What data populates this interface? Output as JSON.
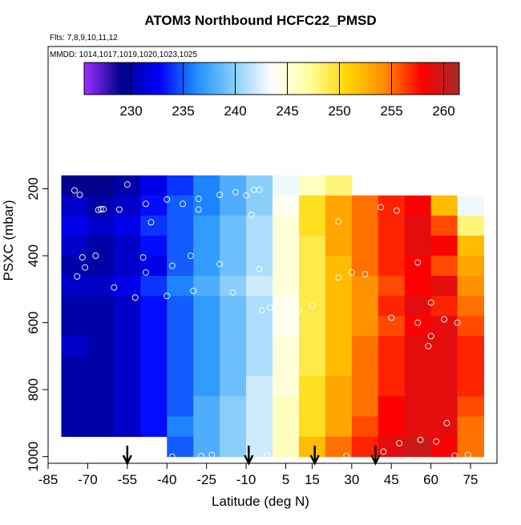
{
  "chart_data": {
    "type": "heatmap",
    "title": "ATOM3 Northbound HCFC22_PMSD",
    "subtitle": "Flts: 7,8,9,10,11,12",
    "annotation": "MMDD: 1014,1017,1019,1020,1023,1025",
    "x_label": "Latitude (deg N)",
    "y_label": "PSXC (mbar)",
    "xlim": [
      -85,
      85
    ],
    "ylim": [
      1020,
      -225
    ],
    "xticks": [
      -85,
      -70,
      -55,
      -40,
      -25,
      -10,
      5,
      15,
      30,
      45,
      60,
      75
    ],
    "yticks": [
      200,
      400,
      600,
      800,
      1000
    ],
    "xbins": [
      -80,
      -70,
      -60,
      -50,
      -40,
      -30,
      -20,
      -10,
      0,
      10,
      20,
      30,
      40,
      50,
      60,
      70,
      80
    ],
    "ybins": [
      160,
      220,
      280,
      340,
      400,
      460,
      520,
      580,
      640,
      700,
      760,
      820,
      880,
      940,
      1000
    ],
    "values": [
      [
        229,
        229,
        230,
        232,
        234,
        236,
        238,
        240,
        243,
        246,
        248,
        null,
        null,
        null,
        null,
        null
      ],
      [
        231,
        230,
        231,
        233,
        235,
        236,
        238,
        240,
        244,
        250,
        253,
        255,
        257,
        258,
        252,
        243
      ],
      [
        232,
        231,
        232,
        234,
        235,
        237,
        239,
        241,
        245,
        250,
        253,
        255,
        257,
        259,
        256,
        248
      ],
      [
        231,
        230,
        231,
        233,
        235,
        237,
        239,
        241,
        245,
        249,
        253,
        255,
        257,
        259,
        258,
        252
      ],
      [
        230,
        230,
        231,
        232,
        235,
        237,
        239,
        241,
        245,
        249,
        252,
        255,
        257,
        258,
        256,
        253
      ],
      [
        231,
        231,
        232,
        234,
        236,
        238,
        240,
        242,
        245,
        249,
        252,
        254,
        256,
        258,
        259,
        254
      ],
      [
        230,
        230,
        231,
        233,
        235,
        237,
        239,
        241,
        244,
        249,
        252,
        254,
        257,
        259,
        257,
        255
      ],
      [
        230,
        230,
        231,
        233,
        235,
        237,
        239,
        241,
        244,
        249,
        252,
        254,
        256,
        258,
        259,
        256
      ],
      [
        231,
        230,
        231,
        233,
        235,
        237,
        239,
        241,
        245,
        249,
        252,
        255,
        257,
        259,
        259,
        257
      ],
      [
        230,
        230,
        231,
        233,
        235,
        237,
        239,
        241,
        245,
        249,
        252,
        255,
        257,
        259,
        259,
        257
      ],
      [
        230,
        230,
        231,
        233,
        235,
        237,
        239,
        242,
        245,
        250,
        253,
        255,
        257,
        259,
        259,
        257
      ],
      [
        230,
        230,
        231,
        233,
        235,
        238,
        240,
        242,
        246,
        250,
        253,
        255,
        258,
        259,
        259,
        256
      ],
      [
        230,
        230,
        231,
        233,
        236,
        238,
        240,
        242,
        246,
        250,
        253,
        256,
        258,
        259,
        259,
        255
      ],
      [
        null,
        null,
        null,
        null,
        235,
        238,
        240,
        242,
        246,
        252,
        255,
        257,
        259,
        260,
        258,
        255
      ]
    ],
    "colorbar": {
      "lim": [
        225.5,
        261.5
      ],
      "ticks": [
        230,
        235,
        240,
        245,
        250,
        255,
        260
      ],
      "colors": [
        "#9b30ff",
        "#00008b",
        "#0000ff",
        "#1e90ff",
        "#87cefa",
        "#ffffff",
        "#ffffa0",
        "#ffd700",
        "#ff8c00",
        "#ff0000",
        "#a52a2a"
      ]
    },
    "points": {
      "x": [
        -75,
        -73,
        -55,
        -48,
        -40,
        -34,
        -28,
        -20,
        -14,
        -10,
        -7,
        -5,
        -66,
        -65,
        -64,
        -58,
        -28,
        -8,
        1,
        25,
        41,
        47,
        -46,
        -72,
        -67,
        -49,
        -38,
        -31,
        -20,
        -5,
        -71,
        -74,
        -60,
        -15,
        -48,
        -40,
        -30,
        -52,
        -4,
        -1,
        10,
        25,
        30,
        15,
        35,
        55,
        60,
        65,
        55,
        70,
        60,
        -78,
        -60,
        -38,
        -27,
        -23,
        -9,
        -2,
        28,
        42,
        48,
        56,
        62,
        69,
        74,
        66,
        59,
        45
      ],
      "y": [
        205,
        218,
        187,
        245,
        232,
        245,
        230,
        218,
        210,
        220,
        203,
        203,
        263,
        261,
        261,
        262,
        262,
        278,
        265,
        298,
        255,
        265,
        300,
        405,
        400,
        405,
        430,
        400,
        425,
        440,
        435,
        462,
        495,
        510,
        450,
        520,
        505,
        525,
        563,
        555,
        562,
        465,
        450,
        550,
        455,
        420,
        540,
        590,
        600,
        600,
        640,
        950,
        950,
        1000,
        998,
        995,
        998,
        996,
        998,
        985,
        960,
        950,
        955,
        997,
        995,
        900,
        670,
        585
      ]
    },
    "arrows": [
      -55,
      -9,
      16,
      39
    ]
  }
}
